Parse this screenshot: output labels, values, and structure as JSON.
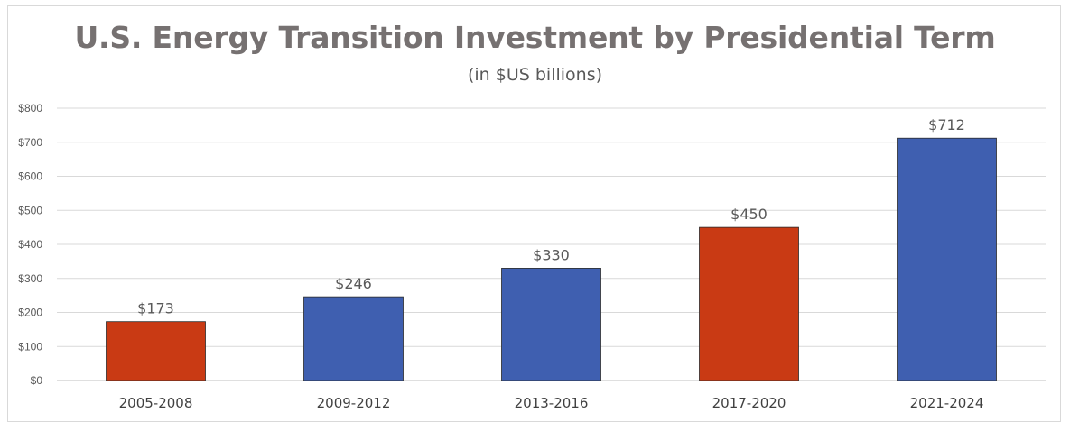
{
  "chart_data": {
    "type": "bar",
    "title": "U.S. Energy Transition Investment by Presidential Term",
    "subtitle": "(in $US billions)",
    "categories": [
      "2005-2008",
      "2009-2012",
      "2013-2016",
      "2017-2020",
      "2021-2024"
    ],
    "values": [
      173,
      246,
      330,
      450,
      712
    ],
    "data_labels": [
      "$173",
      "$246",
      "$330",
      "$450",
      "$712"
    ],
    "bar_colors": [
      "#c93a14",
      "#3f5fb0",
      "#3f5fb0",
      "#c93a14",
      "#3f5fb0"
    ],
    "yticks": [
      0,
      100,
      200,
      300,
      400,
      500,
      600,
      700,
      800
    ],
    "ytick_labels": [
      "$0",
      "$100",
      "$200",
      "$300",
      "$400",
      "$500",
      "$600",
      "$700",
      "$800"
    ],
    "ylim": [
      0,
      800
    ],
    "xlabel": "",
    "ylabel": "",
    "grid": true,
    "legend": "none"
  }
}
